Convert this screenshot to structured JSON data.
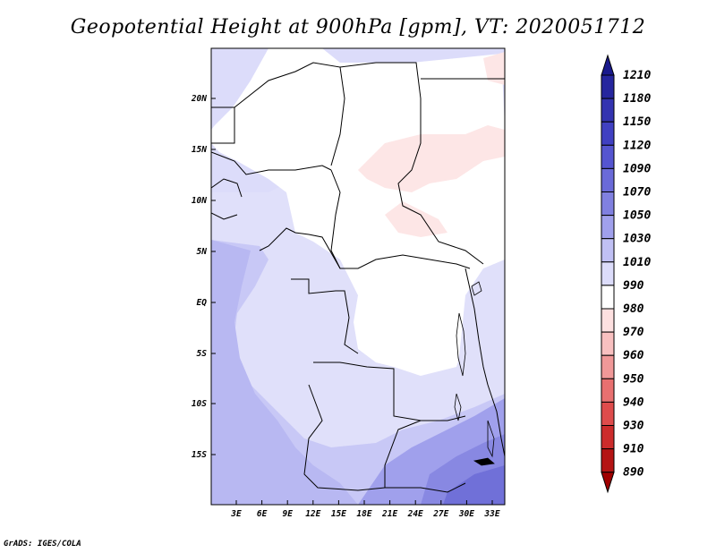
{
  "title": "Geopotential Height at 900hPa [gpm], VT: 2020051712",
  "footer": "GrADS: IGES/COLA",
  "map": {
    "lat_labels": [
      "20N",
      "15N",
      "10N",
      "5N",
      "EQ",
      "5S",
      "10S",
      "15S"
    ],
    "lon_labels": [
      "3E",
      "6E",
      "9E",
      "12E",
      "15E",
      "18E",
      "21E",
      "24E",
      "27E",
      "30E",
      "33E"
    ],
    "field_levels_gpm": {
      "west_ocean_low": 1050,
      "southwest_ocean": 1060,
      "central_basin": 1005,
      "sahel_belt_north": 1020,
      "central_sahara_patch": 995,
      "southeast_high": 1080
    }
  },
  "colorbar": {
    "labels": [
      "1210",
      "1180",
      "1150",
      "1120",
      "1090",
      "1070",
      "1050",
      "1030",
      "1010",
      "990",
      "980",
      "970",
      "960",
      "950",
      "940",
      "930",
      "910",
      "890"
    ],
    "colors": [
      "#1a1a8c",
      "#26269e",
      "#3333b0",
      "#4040c2",
      "#5555d0",
      "#6a6ad8",
      "#8080e0",
      "#a0a0ec",
      "#c0c0f4",
      "#dcdcfa",
      "#ffffff",
      "#fde0e0",
      "#f8c0c0",
      "#f09898",
      "#e87070",
      "#de4c4c",
      "#cc2c2c",
      "#b41414",
      "#a00000"
    ]
  }
}
